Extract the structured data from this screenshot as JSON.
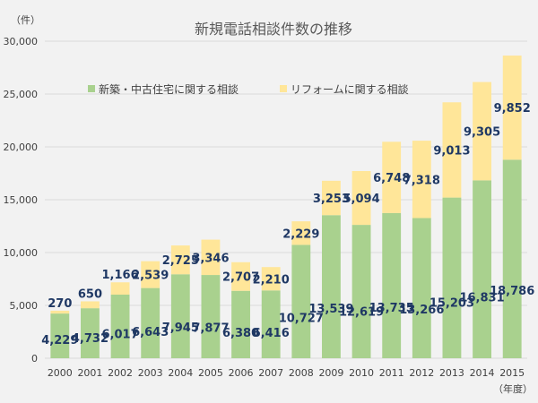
{
  "chart_data": {
    "type": "bar",
    "stacked": true,
    "title": "新規電話相談件数の推移",
    "ylabel": "（件）",
    "xlabel": "（年度）",
    "categories": [
      "2000",
      "2001",
      "2002",
      "2003",
      "2004",
      "2005",
      "2006",
      "2007",
      "2008",
      "2009",
      "2010",
      "2011",
      "2012",
      "2013",
      "2014",
      "2015"
    ],
    "ylim": [
      0,
      30000
    ],
    "yticks": [
      "0",
      "5,000",
      "10,000",
      "15,000",
      "20,000",
      "25,000",
      "30,000"
    ],
    "ytick_values": [
      0,
      5000,
      10000,
      15000,
      20000,
      25000,
      30000
    ],
    "grid": true,
    "legend_position": "top-center",
    "series": [
      {
        "name": "新築・中古住宅に関する相談",
        "color": "#a9d18e",
        "values": [
          4229,
          4732,
          6017,
          6643,
          7945,
          7877,
          6380,
          6416,
          10727,
          13539,
          12619,
          13735,
          13266,
          15203,
          16831,
          18786
        ],
        "labels": [
          "4,229",
          "4,732",
          "6,017",
          "6,643",
          "7,945",
          "7,877",
          "6,380",
          "6,416",
          "10,727",
          "13,539",
          "12,619",
          "13,735",
          "13,266",
          "15,203",
          "16,831",
          "18,786"
        ]
      },
      {
        "name": "リフォームに関する相談",
        "color": "#ffe699",
        "values": [
          270,
          650,
          1166,
          2539,
          2725,
          3346,
          2707,
          2210,
          2229,
          3253,
          5094,
          6748,
          7318,
          9013,
          9305,
          9852
        ],
        "labels": [
          "270",
          "650",
          "1,166",
          "2,539",
          "2,725",
          "3,346",
          "2,707",
          "2,210",
          "2,229",
          "3,253",
          "5,094",
          "6,748",
          "7,318",
          "9,013",
          "9,305",
          "9,852"
        ]
      }
    ]
  }
}
